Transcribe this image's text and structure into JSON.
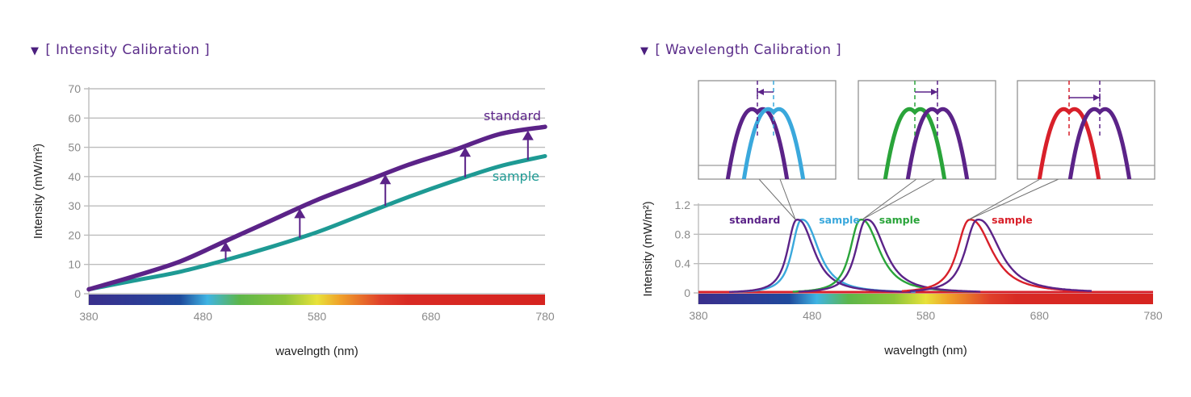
{
  "sections": {
    "left_title": "[ Intensity Calibration ]",
    "right_title": "[ Wavelength Calibration ]",
    "triangle_icon": "▼"
  },
  "colors": {
    "standard": "#5b2388",
    "sample_teal": "#1e9a94",
    "sample_blue": "#3aa8dc",
    "sample_green": "#2aa43a",
    "sample_red": "#d8202a",
    "title": "#5b2d8a",
    "grid": "#bdbdbd"
  },
  "chart_data": [
    {
      "type": "line",
      "title": "[ Intensity Calibration ]",
      "xlabel": "wavelngth (nm)",
      "ylabel": "Intensity (mW/m²)",
      "xlim": [
        380,
        780
      ],
      "ylim": [
        0,
        70
      ],
      "xticks": [
        380,
        480,
        580,
        680,
        780
      ],
      "yticks": [
        0,
        10,
        20,
        30,
        40,
        50,
        60,
        70
      ],
      "grid": true,
      "spectrum_bar": true,
      "series": [
        {
          "name": "standard",
          "label": "standard",
          "x": [
            380,
            420,
            460,
            500,
            540,
            580,
            620,
            660,
            700,
            740,
            780
          ],
          "y": [
            1.5,
            6,
            11,
            18,
            25,
            32,
            38,
            44,
            49,
            54.5,
            57
          ]
        },
        {
          "name": "sample",
          "label": "sample",
          "x": [
            380,
            420,
            460,
            500,
            540,
            580,
            620,
            660,
            700,
            740,
            780
          ],
          "y": [
            1.5,
            4.5,
            7.5,
            11.5,
            16,
            21,
            27,
            33,
            38.5,
            43.5,
            47
          ]
        }
      ],
      "annotations": {
        "arrows_from_sample_to_standard_at_x": [
          500,
          565,
          640,
          710,
          765
        ]
      }
    },
    {
      "type": "line",
      "title": "[ Wavelength Calibration ]",
      "xlabel": "wavelngth (nm)",
      "ylabel": "Intensity (mW/m²)",
      "xlim": [
        380,
        780
      ],
      "ylim": [
        0,
        1.2
      ],
      "xticks": [
        380,
        480,
        580,
        680,
        780
      ],
      "yticks": [
        0,
        0.4,
        0.8,
        1.2
      ],
      "grid": true,
      "spectrum_bar": true,
      "series": [
        {
          "name": "standard-blue",
          "label": "standard",
          "peak_x": 467,
          "peak_y": 1.0,
          "width": 10
        },
        {
          "name": "sample-blue",
          "label": "sample",
          "peak_x": 471,
          "peak_y": 1.0,
          "width": 10
        },
        {
          "name": "standard-green",
          "label": "",
          "peak_x": 528,
          "peak_y": 1.0,
          "width": 11
        },
        {
          "name": "sample-green",
          "label": "sample",
          "peak_x": 523,
          "peak_y": 1.0,
          "width": 11
        },
        {
          "name": "standard-red",
          "label": "",
          "peak_x": 626,
          "peak_y": 1.0,
          "width": 13
        },
        {
          "name": "sample-red",
          "label": "sample",
          "peak_x": 619,
          "peak_y": 1.0,
          "width": 13
        }
      ],
      "insets": [
        {
          "name": "zoom-blue",
          "standard_color": "standard",
          "sample_color": "sample_blue",
          "shift": "sample right of standard",
          "arrow": "left"
        },
        {
          "name": "zoom-green",
          "standard_color": "standard",
          "sample_color": "sample_green",
          "shift": "sample left of standard",
          "arrow": "right"
        },
        {
          "name": "zoom-red",
          "standard_color": "standard",
          "sample_color": "sample_red",
          "shift": "sample left of standard",
          "arrow": "right"
        }
      ]
    }
  ]
}
